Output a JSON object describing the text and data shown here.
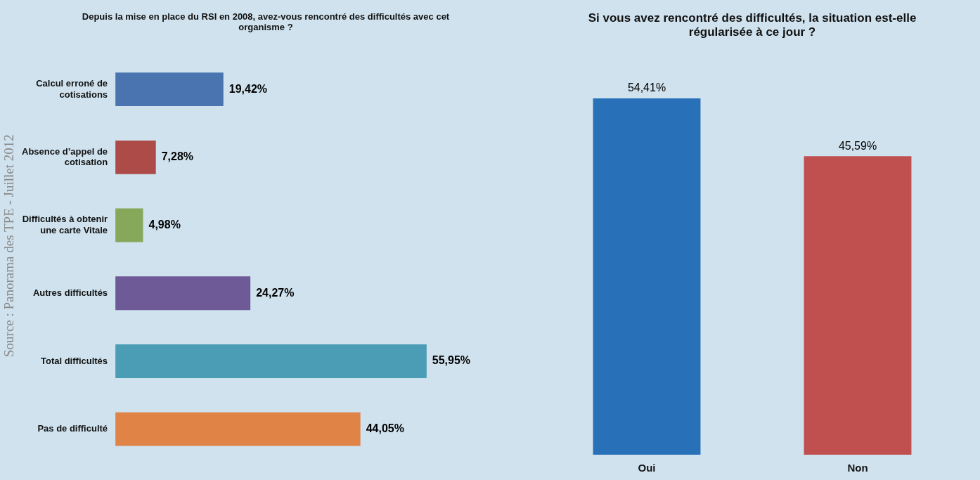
{
  "chart_data": [
    {
      "type": "bar",
      "orientation": "horizontal",
      "title": "Depuis la mise en place du RSI en 2008, avez-vous rencontré des difficultés avec cet organisme ?",
      "categories": [
        "Calcul erroné de cotisations",
        "Absence d’appel de cotisation",
        "Difficultés à obtenir une carte Vitale",
        "Autres difficultés",
        "Total difficultés",
        "Pas de difficulté"
      ],
      "values": [
        19.42,
        7.28,
        4.98,
        24.27,
        55.95,
        44.05
      ],
      "colors": [
        "#4a74b0",
        "#ac4b48",
        "#86a85a",
        "#6e5a96",
        "#4a9db5",
        "#df8446"
      ],
      "value_labels": [
        "19,42%",
        "7,28%",
        "4,98%",
        "24,27%",
        "55,95%",
        "44,05%"
      ],
      "annotations": [
        "Source : Panorama des TPE - Juillet 2012"
      ]
    },
    {
      "type": "bar",
      "title": "Si vous avez rencontré des difficultés, la situation est-elle régularisée à ce jour ?",
      "categories": [
        "Oui",
        "Non"
      ],
      "values": [
        54.41,
        45.59
      ],
      "colors": [
        "#2870b8",
        "#c0504f"
      ],
      "value_labels": [
        "54,41%",
        "45,59%"
      ]
    }
  ]
}
